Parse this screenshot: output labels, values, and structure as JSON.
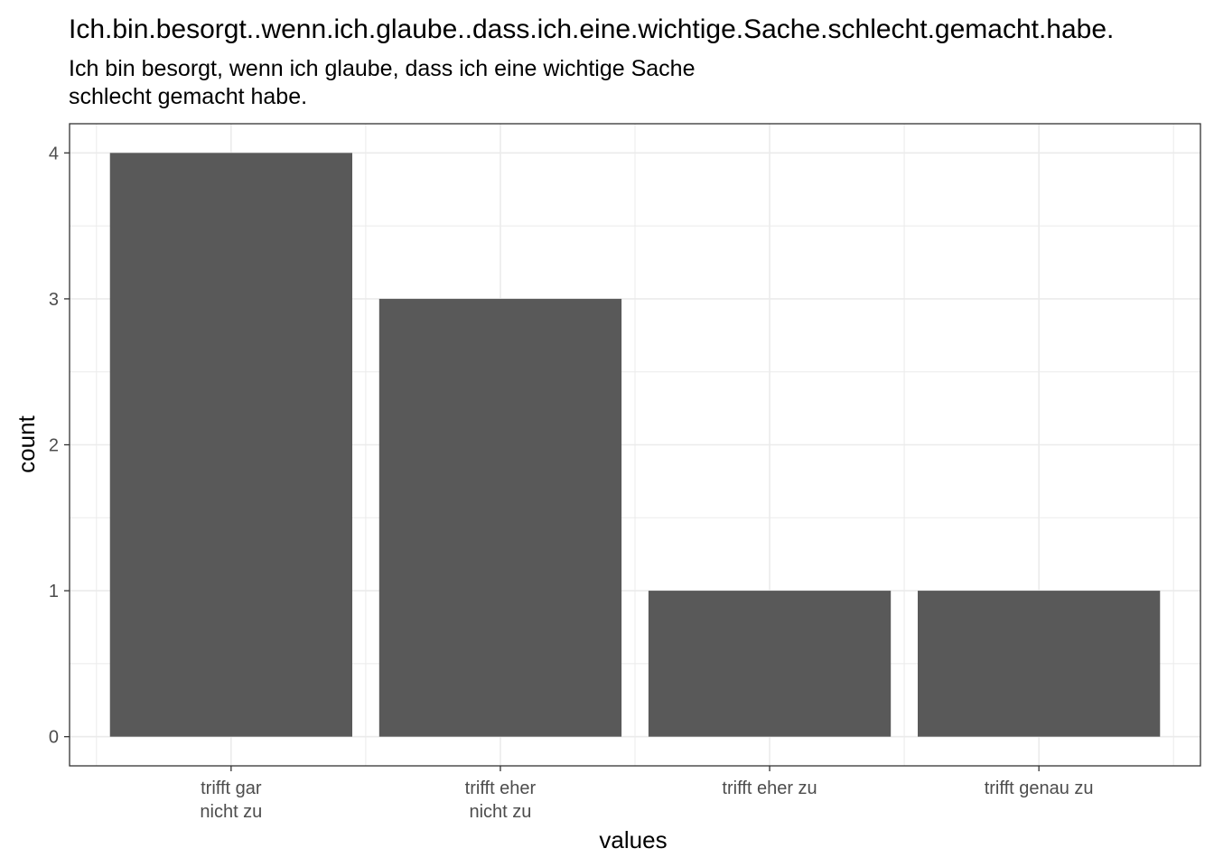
{
  "chart_data": {
    "type": "bar",
    "title": "Ich.bin.besorgt..wenn.ich.glaube..dass.ich.eine.wichtige.Sache.schlecht.gemacht.habe.",
    "subtitle_lines": [
      "Ich bin besorgt, wenn ich glaube, dass ich eine wichtige Sache",
      "schlecht gemacht habe."
    ],
    "categories": [
      [
        "trifft gar",
        "nicht zu"
      ],
      [
        "trifft eher",
        "nicht zu"
      ],
      [
        "trifft eher zu"
      ],
      [
        "trifft genau zu"
      ]
    ],
    "values": [
      4,
      3,
      1,
      1
    ],
    "xlabel": "values",
    "ylabel": "count",
    "yticks": [
      0,
      1,
      2,
      3,
      4
    ],
    "ylim": [
      -0.2,
      4.2
    ],
    "grid": true,
    "bar_color": "#595959",
    "grid_color": "#ebebeb",
    "panel_border_color": "#333333"
  }
}
